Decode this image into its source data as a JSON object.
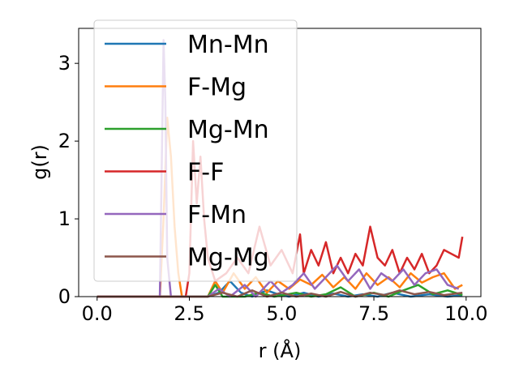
{
  "chart_data": {
    "type": "line",
    "xlabel": "r (Å)",
    "ylabel": "g(r)",
    "xlim": [
      -0.5,
      10.4
    ],
    "ylim": [
      0,
      3.45
    ],
    "xticks": [
      0.0,
      2.5,
      5.0,
      7.5,
      10.0
    ],
    "xtick_labels": [
      "0.0",
      "2.5",
      "5.0",
      "7.5",
      "10.0"
    ],
    "yticks": [
      0,
      1,
      2,
      3
    ],
    "ytick_labels": [
      "0",
      "1",
      "2",
      "3"
    ],
    "grid": false,
    "legend_position": "upper-left",
    "series": [
      {
        "name": "Mn-Mn",
        "color": "#1f77b4",
        "points": [
          [
            0,
            0
          ],
          [
            3.0,
            0
          ],
          [
            3.3,
            0.05
          ],
          [
            3.6,
            0.2
          ],
          [
            3.9,
            0.05
          ],
          [
            4.2,
            0
          ],
          [
            4.6,
            0.08
          ],
          [
            4.9,
            0.03
          ],
          [
            5.2,
            0
          ],
          [
            5.6,
            0.05
          ],
          [
            6.0,
            0
          ],
          [
            6.4,
            0.04
          ],
          [
            6.8,
            0
          ],
          [
            7.2,
            0.03
          ],
          [
            7.6,
            0
          ],
          [
            8.0,
            0.05
          ],
          [
            8.5,
            0
          ],
          [
            9.0,
            0.03
          ],
          [
            9.5,
            0
          ],
          [
            9.9,
            0.02
          ]
        ]
      },
      {
        "name": "F-Mg",
        "color": "#ff7f0e",
        "points": [
          [
            0,
            0
          ],
          [
            1.7,
            0
          ],
          [
            1.8,
            1.0
          ],
          [
            1.9,
            2.3
          ],
          [
            2.0,
            1.8
          ],
          [
            2.1,
            0.9
          ],
          [
            2.2,
            0.3
          ],
          [
            2.3,
            0
          ],
          [
            3.0,
            0
          ],
          [
            3.2,
            0.2
          ],
          [
            3.4,
            0.05
          ],
          [
            3.7,
            0.3
          ],
          [
            4.0,
            0.1
          ],
          [
            4.3,
            0.25
          ],
          [
            4.6,
            0.05
          ],
          [
            4.9,
            0.2
          ],
          [
            5.2,
            0.1
          ],
          [
            5.5,
            0.22
          ],
          [
            5.8,
            0.15
          ],
          [
            6.1,
            0.28
          ],
          [
            6.4,
            0.12
          ],
          [
            6.7,
            0.25
          ],
          [
            7.0,
            0.1
          ],
          [
            7.3,
            0.3
          ],
          [
            7.6,
            0.15
          ],
          [
            7.9,
            0.25
          ],
          [
            8.2,
            0.12
          ],
          [
            8.5,
            0.3
          ],
          [
            8.8,
            0.18
          ],
          [
            9.1,
            0.25
          ],
          [
            9.4,
            0.3
          ],
          [
            9.7,
            0.1
          ],
          [
            9.9,
            0.15
          ]
        ]
      },
      {
        "name": "Mg-Mn",
        "color": "#2ca02c",
        "points": [
          [
            0,
            0
          ],
          [
            3.0,
            0
          ],
          [
            3.2,
            0.15
          ],
          [
            3.4,
            0
          ],
          [
            4.0,
            0
          ],
          [
            4.4,
            0.05
          ],
          [
            4.8,
            0
          ],
          [
            5.4,
            0.05
          ],
          [
            5.8,
            0
          ],
          [
            6.2,
            0.03
          ],
          [
            6.6,
            0.12
          ],
          [
            7.0,
            0
          ],
          [
            7.5,
            0.05
          ],
          [
            7.9,
            0
          ],
          [
            8.3,
            0.08
          ],
          [
            8.7,
            0.15
          ],
          [
            9.1,
            0.03
          ],
          [
            9.5,
            0.08
          ],
          [
            9.9,
            0.02
          ]
        ]
      },
      {
        "name": "F-F",
        "color": "#d62728",
        "points": [
          [
            0,
            0
          ],
          [
            2.4,
            0
          ],
          [
            2.5,
            0.3
          ],
          [
            2.6,
            2.0
          ],
          [
            2.7,
            1.2
          ],
          [
            2.8,
            1.8
          ],
          [
            2.9,
            1.0
          ],
          [
            3.0,
            0.5
          ],
          [
            3.2,
            0.2
          ],
          [
            3.5,
            0.3
          ],
          [
            3.8,
            0.5
          ],
          [
            4.1,
            0.3
          ],
          [
            4.4,
            0.9
          ],
          [
            4.7,
            0.4
          ],
          [
            5.0,
            0.6
          ],
          [
            5.3,
            0.3
          ],
          [
            5.5,
            0.8
          ],
          [
            5.6,
            0.3
          ],
          [
            5.8,
            0.6
          ],
          [
            6.0,
            0.4
          ],
          [
            6.2,
            0.7
          ],
          [
            6.4,
            0.3
          ],
          [
            6.6,
            0.5
          ],
          [
            6.8,
            0.3
          ],
          [
            7.0,
            0.55
          ],
          [
            7.2,
            0.4
          ],
          [
            7.4,
            0.9
          ],
          [
            7.6,
            0.5
          ],
          [
            7.8,
            0.4
          ],
          [
            8.0,
            0.6
          ],
          [
            8.2,
            0.3
          ],
          [
            8.4,
            0.5
          ],
          [
            8.6,
            0.35
          ],
          [
            8.8,
            0.55
          ],
          [
            9.0,
            0.3
          ],
          [
            9.2,
            0.4
          ],
          [
            9.4,
            0.6
          ],
          [
            9.6,
            0.55
          ],
          [
            9.8,
            0.5
          ],
          [
            9.9,
            0.77
          ]
        ]
      },
      {
        "name": "F-Mn",
        "color": "#9467bd",
        "points": [
          [
            0,
            0
          ],
          [
            1.7,
            0
          ],
          [
            1.8,
            3.3
          ],
          [
            1.85,
            2.5
          ],
          [
            1.9,
            0.5
          ],
          [
            2.0,
            0
          ],
          [
            3.0,
            0
          ],
          [
            3.3,
            0.1
          ],
          [
            3.6,
            0
          ],
          [
            4.0,
            0.15
          ],
          [
            4.3,
            0
          ],
          [
            4.7,
            0.2
          ],
          [
            5.0,
            0.05
          ],
          [
            5.3,
            0.15
          ],
          [
            5.6,
            0.3
          ],
          [
            5.9,
            0.1
          ],
          [
            6.2,
            0.25
          ],
          [
            6.5,
            0.4
          ],
          [
            6.8,
            0.2
          ],
          [
            7.1,
            0.35
          ],
          [
            7.4,
            0.1
          ],
          [
            7.7,
            0.3
          ],
          [
            8.0,
            0.2
          ],
          [
            8.3,
            0.35
          ],
          [
            8.6,
            0.15
          ],
          [
            8.9,
            0.3
          ],
          [
            9.2,
            0.35
          ],
          [
            9.5,
            0.15
          ],
          [
            9.8,
            0.1
          ]
        ]
      },
      {
        "name": "Mg-Mg",
        "color": "#8c564b",
        "points": [
          [
            0,
            0
          ],
          [
            3.0,
            0
          ],
          [
            3.4,
            0.05
          ],
          [
            3.8,
            0
          ],
          [
            4.2,
            0.08
          ],
          [
            4.6,
            0
          ],
          [
            5.0,
            0.05
          ],
          [
            5.4,
            0
          ],
          [
            5.8,
            0.04
          ],
          [
            6.2,
            0
          ],
          [
            6.6,
            0.06
          ],
          [
            7.0,
            0
          ],
          [
            7.4,
            0.05
          ],
          [
            7.8,
            0.02
          ],
          [
            8.2,
            0.08
          ],
          [
            8.6,
            0.03
          ],
          [
            9.0,
            0.06
          ],
          [
            9.4,
            0.02
          ],
          [
            9.9,
            0.05
          ]
        ]
      }
    ]
  }
}
